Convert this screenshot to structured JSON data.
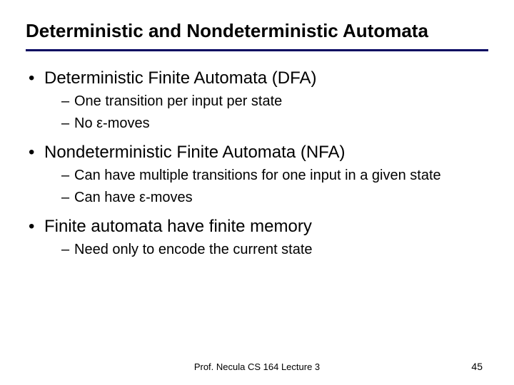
{
  "title": "Deterministic and Nondeterministic Automata",
  "bullets": [
    {
      "text": "Deterministic Finite Automata (DFA)",
      "sub": [
        "One transition per input per state",
        "No ε-moves"
      ]
    },
    {
      "text": "Nondeterministic Finite Automata (NFA)",
      "sub": [
        "Can have multiple transitions for one input in a given state",
        "Can have ε-moves"
      ]
    },
    {
      "text": "Finite automata have finite memory",
      "sub": [
        "Need only to encode the current state"
      ]
    }
  ],
  "footer": "Prof. Necula  CS 164  Lecture 3",
  "page_number": "45",
  "colors": {
    "rule": "#000060",
    "text": "#000000",
    "background": "#ffffff"
  },
  "typography": {
    "family": "Comic Sans MS",
    "title_size_pt": 26,
    "l1_size_pt": 24,
    "l2_size_pt": 20,
    "footer_size_pt": 13
  }
}
